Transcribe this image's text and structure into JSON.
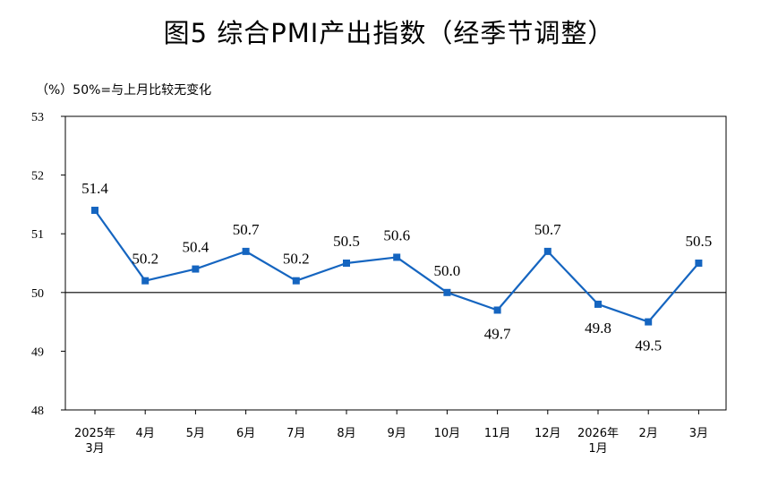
{
  "title": "图5  综合PMI产出指数（经季节调整）",
  "unit_note": "（%）50%=与上月比较无变化",
  "colors": {
    "line": "#1565C0",
    "marker": "#1565C0",
    "axis": "#000000"
  },
  "chart_data": {
    "type": "line",
    "title": "图5  综合PMI产出指数（经季节调整）",
    "xlabel": "",
    "ylabel": "（%）",
    "ylim": [
      48,
      53
    ],
    "yticks": [
      48,
      49,
      50,
      51,
      52,
      53
    ],
    "reference_line": 50,
    "grid": false,
    "categories": [
      [
        "2025年",
        "3月"
      ],
      [
        "4月"
      ],
      [
        "5月"
      ],
      [
        "6月"
      ],
      [
        "7月"
      ],
      [
        "8月"
      ],
      [
        "9月"
      ],
      [
        "10月"
      ],
      [
        "11月"
      ],
      [
        "12月"
      ],
      [
        "2026年",
        "1月"
      ],
      [
        "2月"
      ],
      [
        "3月"
      ]
    ],
    "series": [
      {
        "values": [
          51.4,
          50.2,
          50.4,
          50.7,
          50.2,
          50.5,
          50.6,
          50.0,
          49.7,
          50.7,
          49.8,
          49.5,
          50.5
        ],
        "labels": [
          "51.4",
          "50.2",
          "50.4",
          "50.7",
          "50.2",
          "50.5",
          "50.6",
          "50.0",
          "49.7",
          "50.7",
          "49.8",
          "49.5",
          "50.5"
        ],
        "label_position": [
          "above",
          "above",
          "above",
          "above",
          "above",
          "above",
          "above",
          "above",
          "below",
          "above",
          "below",
          "below",
          "above"
        ]
      }
    ]
  }
}
